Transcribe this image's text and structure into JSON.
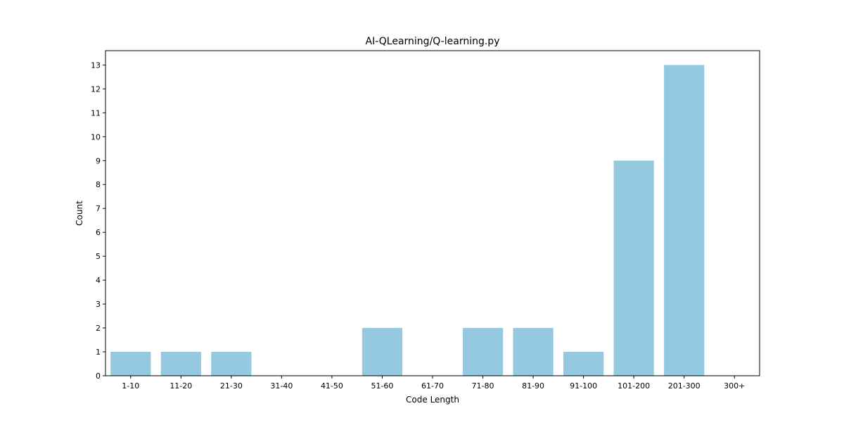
{
  "chart_data": {
    "type": "bar",
    "title": "AI-QLearning/Q-learning.py",
    "xlabel": "Code Length",
    "ylabel": "Count",
    "categories": [
      "1-10",
      "11-20",
      "21-30",
      "31-40",
      "41-50",
      "51-60",
      "61-70",
      "71-80",
      "81-90",
      "91-100",
      "101-200",
      "201-300",
      "300+"
    ],
    "values": [
      1,
      1,
      1,
      0,
      0,
      2,
      0,
      2,
      2,
      1,
      9,
      13,
      0
    ],
    "ylim": [
      0,
      13.6
    ],
    "yticks": [
      0,
      1,
      2,
      3,
      4,
      5,
      6,
      7,
      8,
      9,
      10,
      11,
      12,
      13
    ],
    "grid": false,
    "bar_color": "#95c9df"
  }
}
